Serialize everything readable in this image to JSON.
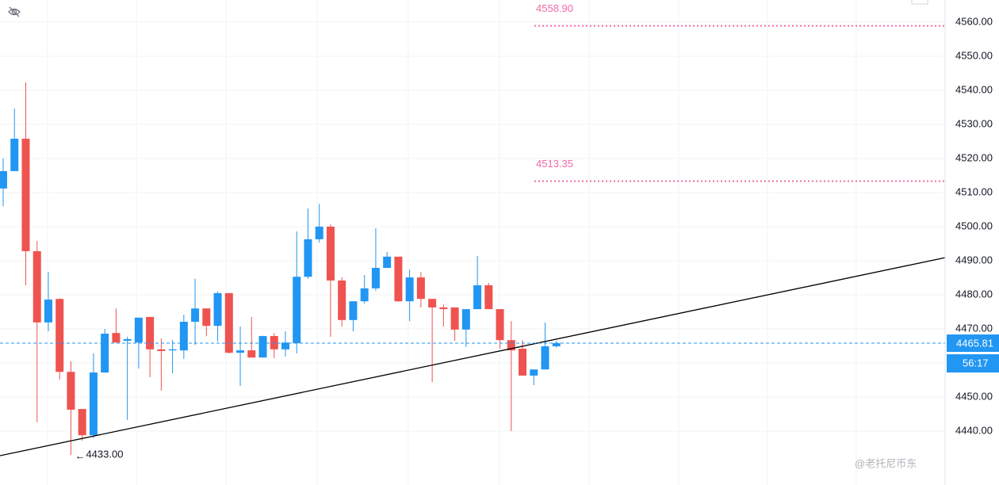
{
  "chart_data": {
    "type": "candlestick",
    "up_color": "#2196f3",
    "down_color": "#ef5350",
    "open": [
      4511.2,
      4516.3,
      4525.8,
      4492.8,
      4471.9,
      4478.8,
      4457.4,
      4446.5,
      4438.8,
      4457.2,
      4468.8,
      4466.5,
      4466.0,
      4473.5,
      4464.0,
      4463.7,
      4463.7,
      4472.1,
      4476.0,
      4470.9,
      4480.5,
      4463.0,
      4463.7,
      4461.6,
      4467.9,
      4464.0,
      4465.8,
      4485.3,
      4496.3,
      4500.0,
      4484.2,
      4472.6,
      4478.1,
      4481.9,
      4487.9,
      4491.2,
      4478.1,
      4485.1,
      4478.8,
      4476.3,
      4476.3,
      4469.8,
      4475.8,
      4482.8,
      4475.8,
      4466.7,
      4464.2,
      4456.3,
      4458.1,
      4464.9
    ],
    "high": [
      4520.0,
      4534.7,
      4542.3,
      4495.8,
      4486.7,
      4479.0,
      4460.5,
      4446.5,
      4462.8,
      4470.0,
      4476.0,
      4467.7,
      4473.3,
      4473.5,
      4467.2,
      4466.7,
      4474.2,
      4484.7,
      4476.0,
      4481.0,
      4480.5,
      4470.7,
      4473.5,
      4468.0,
      4468.8,
      4469.3,
      4498.6,
      4505.3,
      4506.7,
      4500.7,
      4485.1,
      4478.1,
      4485.8,
      4499.5,
      4492.6,
      4491.2,
      4487.4,
      4486.7,
      4478.8,
      4477.2,
      4476.3,
      4475.8,
      4491.4,
      4483.5,
      4475.8,
      4472.3,
      4466.7,
      4458.1,
      4471.9,
      4466.5
    ],
    "low": [
      4506.0,
      4516.3,
      4482.8,
      4442.6,
      4469.3,
      4455.1,
      4433.0,
      4437.2,
      4438.0,
      4457.2,
      4466.0,
      4443.3,
      4458.4,
      4455.8,
      4451.9,
      4457.0,
      4461.2,
      4465.3,
      4467.9,
      4466.3,
      4462.8,
      4453.3,
      4461.6,
      4461.6,
      4461.4,
      4461.9,
      4462.8,
      4484.7,
      4495.3,
      4467.7,
      4470.7,
      4469.3,
      4477.4,
      4481.2,
      4487.9,
      4477.9,
      4472.3,
      4476.3,
      4454.4,
      4470.7,
      4466.5,
      4464.7,
      4475.8,
      4475.8,
      4464.2,
      4440.0,
      4456.3,
      4453.5,
      4458.1,
      4464.5
    ],
    "close": [
      4516.3,
      4525.8,
      4492.8,
      4471.9,
      4478.6,
      4457.4,
      4446.3,
      4438.8,
      4457.2,
      4468.6,
      4466.0,
      4467.0,
      4473.3,
      4464.0,
      4463.5,
      4464.0,
      4472.1,
      4476.0,
      4470.9,
      4480.5,
      4463.0,
      4463.7,
      4461.6,
      4467.9,
      4464.0,
      4466.0,
      4485.3,
      4496.3,
      4500.0,
      4484.2,
      4472.6,
      4478.1,
      4481.9,
      4487.9,
      4491.2,
      4478.1,
      4485.1,
      4478.8,
      4476.3,
      4475.8,
      4469.8,
      4475.8,
      4482.8,
      4475.8,
      4466.7,
      4463.7,
      4456.3,
      4458.1,
      4464.9,
      4465.81
    ],
    "ylim": [
      4424.2,
      4566.5
    ],
    "yticks": [
      {
        "value": 4440,
        "label": "4440.00"
      },
      {
        "value": 4450,
        "label": "4450.00"
      },
      {
        "value": 4460,
        "label": "4460.00"
      },
      {
        "value": 4470,
        "label": "4470.00"
      },
      {
        "value": 4480,
        "label": "4480.00"
      },
      {
        "value": 4490,
        "label": "4490.00"
      },
      {
        "value": 4500,
        "label": "4500.00"
      },
      {
        "value": 4510,
        "label": "4510.00"
      },
      {
        "value": 4520,
        "label": "4520.00"
      },
      {
        "value": 4530,
        "label": "4530.00"
      },
      {
        "value": 4540,
        "label": "4540.00"
      },
      {
        "value": 4550,
        "label": "4550.00"
      },
      {
        "value": 4560,
        "label": "4560.00"
      }
    ],
    "grid": true,
    "levels": [
      {
        "value": 4558.9,
        "label": "4558.90",
        "color": "#f06aa8"
      },
      {
        "value": 4513.35,
        "label": "4513.35",
        "color": "#f06aa8"
      }
    ],
    "last_price": {
      "value": 4465.81,
      "label": "4465.81",
      "color": "#2196f3"
    },
    "countdown": "56:17",
    "trendline": [
      4432.8,
      4490.9
    ],
    "low_annotation": {
      "value": 4433,
      "label": "4433.00"
    },
    "watermark": "@老托尼币东"
  }
}
